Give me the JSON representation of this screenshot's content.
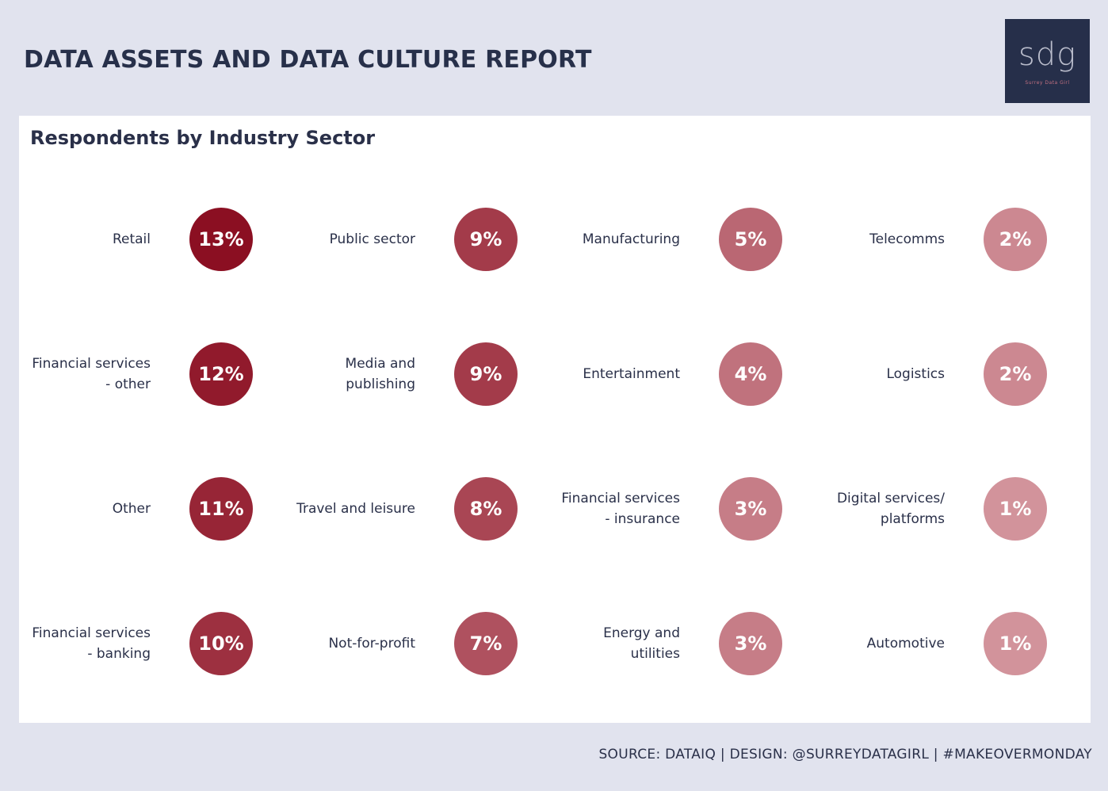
{
  "header": {
    "title": "DATA ASSETS AND DATA CULTURE REPORT",
    "logo_mark": "sdg",
    "logo_subtitle": "Surrey Data Girl"
  },
  "footer": {
    "credit": "SOURCE: DATAIQ | DESIGN: @SURREYDATAGIRL | #MAKEOVERMONDAY"
  },
  "chart_data": {
    "type": "bubble-grid",
    "title": "Respondents by Industry Sector",
    "unit": "%",
    "columns": 4,
    "rows": 4,
    "order": "column-major",
    "color_scale": {
      "high": "#8b0f22",
      "low": "#d2939b"
    },
    "categories": [
      "Retail",
      "Financial services - other",
      "Other",
      "Financial services - banking",
      "Public sector",
      "Media and publishing",
      "Travel and leisure",
      "Not-for-profit",
      "Manufacturing",
      "Entertainment",
      "Financial services - insurance",
      "Energy and utilities",
      "Telecomms",
      "Logistics",
      "Digital services/ platforms",
      "Automotive"
    ],
    "label_lines": [
      [
        "Retail"
      ],
      [
        "Financial services",
        "- other"
      ],
      [
        "Other"
      ],
      [
        "Financial services",
        "- banking"
      ],
      [
        "Public sector"
      ],
      [
        "Media and",
        "publishing"
      ],
      [
        "Travel and leisure"
      ],
      [
        "Not-for-profit"
      ],
      [
        "Manufacturing"
      ],
      [
        "Entertainment"
      ],
      [
        "Financial services",
        "- insurance"
      ],
      [
        "Energy and",
        "utilities"
      ],
      [
        "Telecomms"
      ],
      [
        "Logistics"
      ],
      [
        "Digital services/",
        "platforms"
      ],
      [
        "Automotive"
      ]
    ],
    "values": [
      13,
      12,
      11,
      10,
      9,
      9,
      8,
      7,
      5,
      4,
      3,
      3,
      2,
      2,
      1,
      1
    ]
  }
}
